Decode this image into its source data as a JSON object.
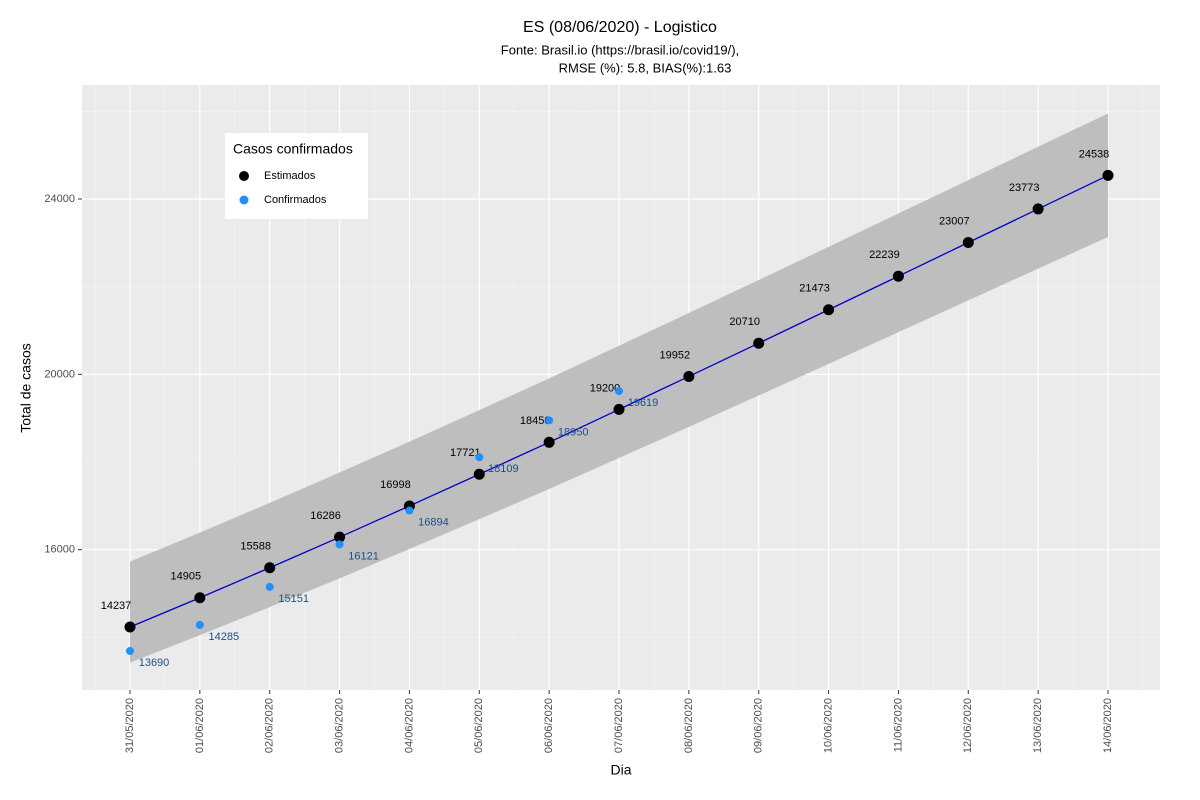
{
  "chart_data": {
    "type": "line",
    "title": "ES (08/06/2020) - Logistico",
    "subtitle": [
      "Fonte: Brasil.io (https://brasil.io/covid19/),",
      "RMSE (%): 5.8, BIAS(%):1.63"
    ],
    "xlabel": "Dia",
    "ylabel": "Total de casos",
    "categories": [
      "31/05/2020",
      "01/06/2020",
      "02/06/2020",
      "03/06/2020",
      "04/06/2020",
      "05/06/2020",
      "06/06/2020",
      "07/06/2020",
      "08/06/2020",
      "09/06/2020",
      "10/06/2020",
      "11/06/2020",
      "12/06/2020",
      "13/06/2020",
      "14/06/2020"
    ],
    "series": [
      {
        "name": "Estimados",
        "color": "#000000",
        "line_color": "#0000cd",
        "label_color": "#000000",
        "values": [
          14237,
          14905,
          15588,
          16286,
          16998,
          17721,
          18450,
          19200,
          19952,
          20710,
          21473,
          22239,
          23007,
          23773,
          24538
        ]
      },
      {
        "name": "Confirmados",
        "color": "#1e90ff",
        "label_color": "#1f4e8c",
        "values": [
          13690,
          14285,
          15151,
          16121,
          16894,
          18109,
          18950,
          19619,
          null,
          null,
          null,
          null,
          null,
          null,
          null
        ]
      }
    ],
    "band": {
      "color": "#bebebe",
      "upper": [
        15727,
        16390,
        17067,
        17760,
        18466,
        19184,
        19907,
        20652,
        21398,
        22151,
        22908,
        23669,
        24431,
        25192,
        25951
      ],
      "lower": [
        13425,
        14051,
        14691,
        15347,
        16017,
        16698,
        17384,
        18092,
        18802,
        19517,
        20238,
        20962,
        21688,
        22411,
        23134
      ]
    },
    "legend_title": "Casos confirmados",
    "ylim": [
      12800,
      26600
    ],
    "yticks": [
      16000,
      20000,
      24000
    ],
    "yminor": [
      14000,
      18000,
      22000,
      26000
    ],
    "grid": true
  }
}
